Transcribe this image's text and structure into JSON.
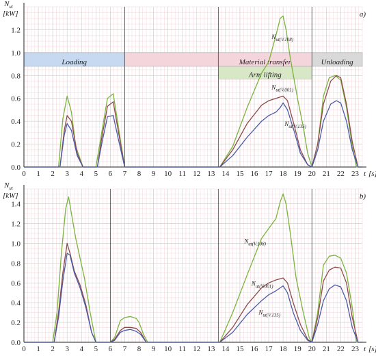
{
  "panels": [
    {
      "panel_label": "a)",
      "y_axis_label": "N",
      "y_axis_label_sub": "ut",
      "y_unit": "[kW]",
      "x_axis_label": "t",
      "x_unit": "[s]",
      "phases": [
        {
          "label": "Loading",
          "start": 0,
          "end": 7,
          "color": "#c6d9f1"
        },
        {
          "label": "",
          "start": 7,
          "end": 13.5,
          "color": "#f4d5dc"
        },
        {
          "label": "Material transfer",
          "start": 13.5,
          "end": 20,
          "color": "#f4d5dc"
        },
        {
          "label": "Unloading",
          "start": 20,
          "end": 23.5,
          "color": "#d9d9d9"
        }
      ],
      "sub_phases": [
        {
          "label": "Arm lifting",
          "start": 13.5,
          "end": 20,
          "color": "#d8e8c6"
        }
      ],
      "annotations": [
        {
          "base": "N",
          "sub": "ut(V.108)",
          "x": 17.2,
          "y": 1.12
        },
        {
          "base": "N",
          "sub": "ut(V.001)",
          "x": 17.2,
          "y": 0.68
        },
        {
          "base": "N",
          "sub": "ut(V.135)",
          "x": 18.1,
          "y": 0.36
        }
      ]
    },
    {
      "panel_label": "b)",
      "y_axis_label": "N",
      "y_axis_label_sub": "ut",
      "y_unit": "[kW]",
      "x_axis_label": "t",
      "x_unit": "[s]",
      "phases": [],
      "sub_phases": [],
      "annotations": [
        {
          "base": "N",
          "sub": "ut(V.108)",
          "x": 15.3,
          "y": 1.0
        },
        {
          "base": "N",
          "sub": "ut(V.001)",
          "x": 15.8,
          "y": 0.57
        },
        {
          "base": "N",
          "sub": "ut(V.135)",
          "x": 16.3,
          "y": 0.28
        }
      ]
    }
  ],
  "chart_data": [
    {
      "type": "line",
      "xlim": [
        0,
        23.5
      ],
      "ylim": [
        0,
        1.4
      ],
      "x_ticks": [
        0,
        1,
        2,
        3,
        4,
        5,
        6,
        7,
        8,
        9,
        10,
        11,
        12,
        13,
        14,
        15,
        16,
        17,
        18,
        19,
        20,
        21,
        22,
        23
      ],
      "y_ticks": [
        0.0,
        0.2,
        0.4,
        0.6,
        0.8,
        1.0,
        1.2
      ],
      "y_tick_labels": [
        "0.0",
        "0.2",
        "0.4",
        "0.6",
        "0.8",
        "1.0",
        "1.2"
      ],
      "vertical_lines": [
        7,
        13.5,
        20
      ],
      "grid": true,
      "series": [
        {
          "key": "V.108",
          "color": "#7bb33c",
          "x": [
            0,
            2.4,
            2.7,
            3.0,
            3.3,
            3.6,
            4.1,
            5.0,
            5.4,
            5.8,
            6.2,
            6.6,
            7.0,
            13.6,
            14.5,
            15.5,
            16.5,
            17.0,
            17.5,
            17.8,
            18.0,
            18.2,
            18.5,
            19.0,
            19.4,
            19.7,
            20.0,
            20.4,
            20.8,
            21.2,
            21.6,
            22.0,
            22.4,
            22.8,
            23.1,
            23.5
          ],
          "y": [
            0,
            0,
            0.42,
            0.62,
            0.48,
            0.18,
            0,
            0,
            0.3,
            0.6,
            0.64,
            0.32,
            0,
            0,
            0.18,
            0.52,
            0.82,
            0.92,
            1.15,
            1.3,
            1.32,
            1.2,
            0.95,
            0.6,
            0.35,
            0.12,
            0,
            0.2,
            0.62,
            0.78,
            0.8,
            0.76,
            0.52,
            0.18,
            0,
            0
          ]
        },
        {
          "key": "V.001",
          "color": "#8c4a4a",
          "x": [
            0,
            2.5,
            2.8,
            3.0,
            3.3,
            3.7,
            4.1,
            5.1,
            5.4,
            5.8,
            6.2,
            6.6,
            7.0,
            13.6,
            14.5,
            15.5,
            16.5,
            17.0,
            17.5,
            18.0,
            18.3,
            18.8,
            19.2,
            19.7,
            20.0,
            20.4,
            20.8,
            21.3,
            21.7,
            22.0,
            22.4,
            22.8,
            23.2,
            23.5
          ],
          "y": [
            0,
            0,
            0.32,
            0.45,
            0.4,
            0.12,
            0,
            0,
            0.25,
            0.53,
            0.57,
            0.28,
            0,
            0,
            0.15,
            0.38,
            0.54,
            0.58,
            0.6,
            0.62,
            0.58,
            0.35,
            0.15,
            0.02,
            0,
            0.2,
            0.55,
            0.75,
            0.8,
            0.78,
            0.55,
            0.22,
            0,
            0
          ]
        },
        {
          "key": "V.135",
          "color": "#4a5aa8",
          "x": [
            0,
            2.5,
            2.8,
            3.0,
            3.3,
            3.7,
            4.1,
            5.1,
            5.4,
            5.8,
            6.2,
            6.6,
            7.0,
            13.6,
            14.5,
            15.5,
            16.5,
            17.0,
            17.5,
            17.8,
            18.0,
            18.3,
            18.8,
            19.2,
            19.7,
            20.0,
            20.4,
            20.8,
            21.3,
            21.7,
            22.0,
            22.4,
            22.8,
            23.2,
            23.5
          ],
          "y": [
            0,
            0,
            0.28,
            0.38,
            0.32,
            0.1,
            0,
            0,
            0.2,
            0.44,
            0.45,
            0.22,
            0,
            0,
            0.1,
            0.26,
            0.4,
            0.45,
            0.48,
            0.52,
            0.56,
            0.5,
            0.3,
            0.12,
            0.02,
            0,
            0.15,
            0.4,
            0.55,
            0.58,
            0.56,
            0.4,
            0.15,
            0,
            0
          ]
        }
      ]
    },
    {
      "type": "line",
      "xlim": [
        0,
        23.5
      ],
      "ylim": [
        0,
        1.55
      ],
      "x_ticks": [
        0,
        1,
        2,
        3,
        4,
        5,
        6,
        7,
        8,
        9,
        10,
        11,
        12,
        13,
        14,
        15,
        16,
        17,
        18,
        19,
        20,
        21,
        22,
        23
      ],
      "y_ticks": [
        0.0,
        0.2,
        0.4,
        0.6,
        0.8,
        1.0,
        1.2,
        1.4
      ],
      "y_tick_labels": [
        "0.0",
        "0.2",
        "0.4",
        "0.6",
        "0.8",
        "1.0",
        "1.2",
        "1.4"
      ],
      "vertical_lines": [
        6,
        13.5,
        20
      ],
      "grid": true,
      "series": [
        {
          "key": "V.108",
          "color": "#7bb33c",
          "x": [
            0,
            2.0,
            2.3,
            2.6,
            2.9,
            3.1,
            3.3,
            3.6,
            3.9,
            4.2,
            4.6,
            5.0,
            6.0,
            6.3,
            6.7,
            7.0,
            7.4,
            7.8,
            8.0,
            8.3,
            8.6,
            13.6,
            14.5,
            15.5,
            16.5,
            17.0,
            17.5,
            17.8,
            18.0,
            18.2,
            18.5,
            18.9,
            19.4,
            19.8,
            20.0,
            20.4,
            20.8,
            21.2,
            21.6,
            22.0,
            22.4,
            22.8,
            23.1,
            23.5
          ],
          "y": [
            0,
            0,
            0.3,
            0.9,
            1.35,
            1.47,
            1.3,
            1.05,
            0.85,
            0.65,
            0.3,
            0,
            0,
            0.05,
            0.22,
            0.25,
            0.26,
            0.24,
            0.2,
            0.08,
            0,
            0,
            0.3,
            0.68,
            1.05,
            1.15,
            1.25,
            1.42,
            1.5,
            1.4,
            1.1,
            0.65,
            0.3,
            0.05,
            0,
            0.3,
            0.78,
            0.87,
            0.88,
            0.85,
            0.7,
            0.35,
            0,
            0
          ]
        },
        {
          "key": "V.001",
          "color": "#8c4a4a",
          "x": [
            0,
            2.1,
            2.4,
            2.7,
            3.0,
            3.2,
            3.5,
            3.9,
            4.3,
            4.7,
            5.0,
            6.0,
            6.3,
            6.7,
            7.0,
            7.4,
            7.8,
            8.1,
            8.5,
            13.6,
            14.5,
            15.5,
            16.5,
            17.0,
            17.5,
            18.0,
            18.3,
            18.7,
            19.2,
            19.7,
            20.0,
            20.4,
            20.8,
            21.2,
            21.6,
            22.0,
            22.4,
            22.8,
            23.2,
            23.5
          ],
          "y": [
            0,
            0,
            0.3,
            0.7,
            1.0,
            0.9,
            0.72,
            0.58,
            0.38,
            0.1,
            0,
            0,
            0.03,
            0.12,
            0.15,
            0.15,
            0.14,
            0.1,
            0,
            0,
            0.15,
            0.38,
            0.55,
            0.6,
            0.63,
            0.65,
            0.6,
            0.4,
            0.18,
            0.03,
            0,
            0.25,
            0.62,
            0.73,
            0.76,
            0.75,
            0.6,
            0.25,
            0,
            0
          ]
        },
        {
          "key": "V.135",
          "color": "#4a5aa8",
          "x": [
            0,
            2.1,
            2.4,
            2.7,
            3.0,
            3.2,
            3.5,
            3.9,
            4.3,
            4.7,
            5.0,
            6.0,
            6.3,
            6.7,
            7.0,
            7.4,
            7.8,
            8.1,
            8.5,
            13.6,
            14.5,
            15.5,
            16.5,
            17.0,
            17.5,
            17.8,
            18.0,
            18.3,
            18.7,
            19.2,
            19.7,
            20.0,
            20.4,
            20.8,
            21.2,
            21.6,
            22.0,
            22.4,
            22.8,
            23.2,
            23.5
          ],
          "y": [
            0,
            0,
            0.25,
            0.62,
            0.9,
            0.88,
            0.7,
            0.55,
            0.35,
            0.1,
            0,
            0,
            0.02,
            0.1,
            0.12,
            0.13,
            0.11,
            0.08,
            0,
            0,
            0.1,
            0.28,
            0.42,
            0.48,
            0.52,
            0.55,
            0.57,
            0.5,
            0.3,
            0.12,
            0.02,
            0,
            0.18,
            0.42,
            0.54,
            0.58,
            0.56,
            0.42,
            0.15,
            0,
            0
          ]
        }
      ]
    }
  ]
}
